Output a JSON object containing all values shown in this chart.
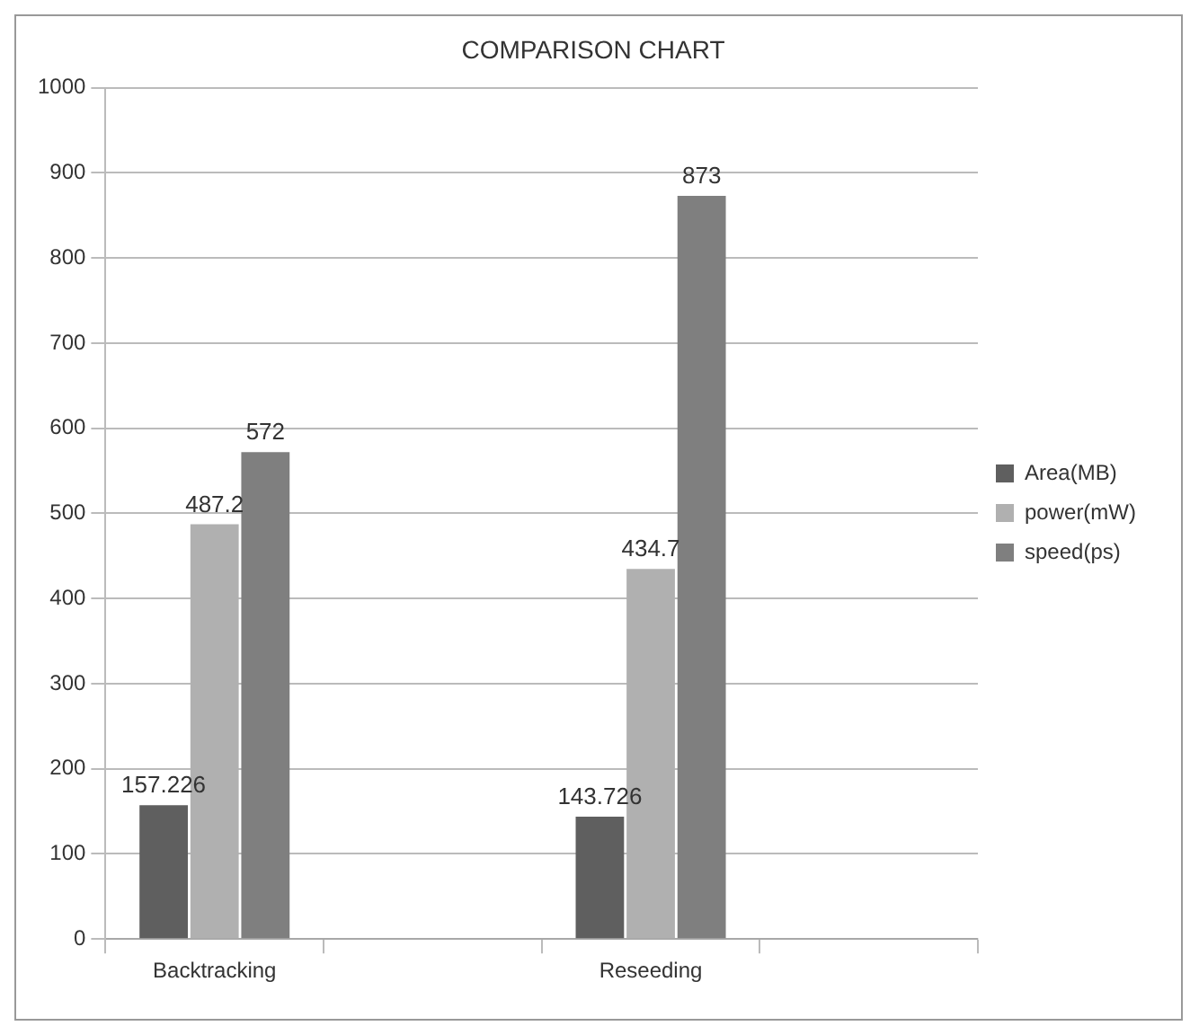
{
  "chart_data": {
    "type": "bar",
    "title": "COMPARISON CHART",
    "categories": [
      "Backtracking",
      null,
      "Reseeding",
      null
    ],
    "series": [
      {
        "name": "Area(MB)",
        "color": "#5f5f5f",
        "values": [
          157.226,
          null,
          143.726,
          null
        ]
      },
      {
        "name": "power(mW)",
        "color": "#b0b0b0",
        "values": [
          487.2,
          null,
          434.7,
          null
        ]
      },
      {
        "name": "speed(ps)",
        "color": "#7f7f7f",
        "values": [
          572,
          null,
          873,
          null
        ]
      }
    ],
    "ylim": [
      0,
      1000
    ],
    "yticks": [
      0,
      100,
      200,
      300,
      400,
      500,
      600,
      700,
      800,
      900,
      1000
    ],
    "grid": "y",
    "legend": "right",
    "data_labels": true
  }
}
